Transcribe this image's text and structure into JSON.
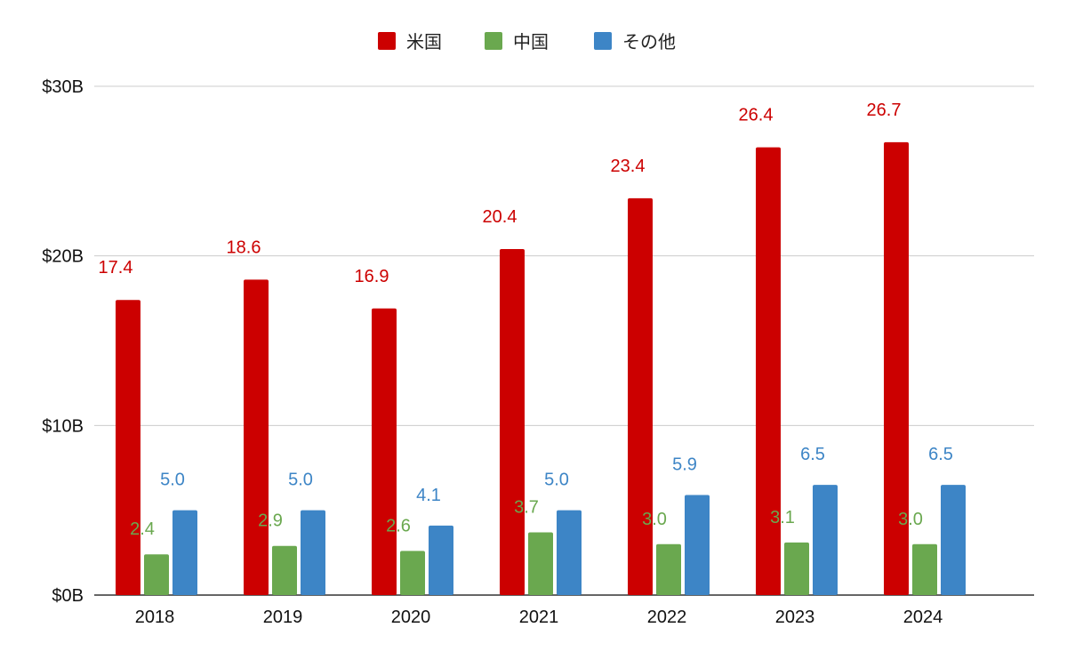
{
  "chart_data": {
    "type": "bar",
    "title": "",
    "xlabel": "",
    "ylabel": "",
    "categories": [
      "2018",
      "2019",
      "2020",
      "2021",
      "2022",
      "2023",
      "2024"
    ],
    "series": [
      {
        "name": "米国",
        "color": "#cc0000",
        "values": [
          17.4,
          18.6,
          16.9,
          20.4,
          23.4,
          26.4,
          26.7
        ],
        "labels": [
          "17.4",
          "18.6",
          "16.9",
          "20.4",
          "23.4",
          "26.4",
          "26.7"
        ]
      },
      {
        "name": "中国",
        "color": "#6aa84f",
        "values": [
          2.4,
          2.9,
          2.6,
          3.7,
          3.0,
          3.1,
          3.0
        ],
        "labels": [
          "2.4",
          "2.9",
          "2.6",
          "3.7",
          "3.0",
          "3.1",
          "3.0"
        ]
      },
      {
        "name": "その他",
        "color": "#3d85c6",
        "values": [
          5.0,
          5.0,
          4.1,
          5.0,
          5.9,
          6.5,
          6.5
        ],
        "labels": [
          "5.0",
          "5.0",
          "4.1",
          "5.0",
          "5.9",
          "6.5",
          "6.5"
        ]
      }
    ],
    "ylim": [
      0,
      30
    ],
    "yticks": [
      0,
      10,
      20,
      30
    ],
    "ytick_labels": [
      "$0B",
      "$10B",
      "$20B",
      "$30B"
    ],
    "grid": true,
    "legend": "top-center"
  }
}
